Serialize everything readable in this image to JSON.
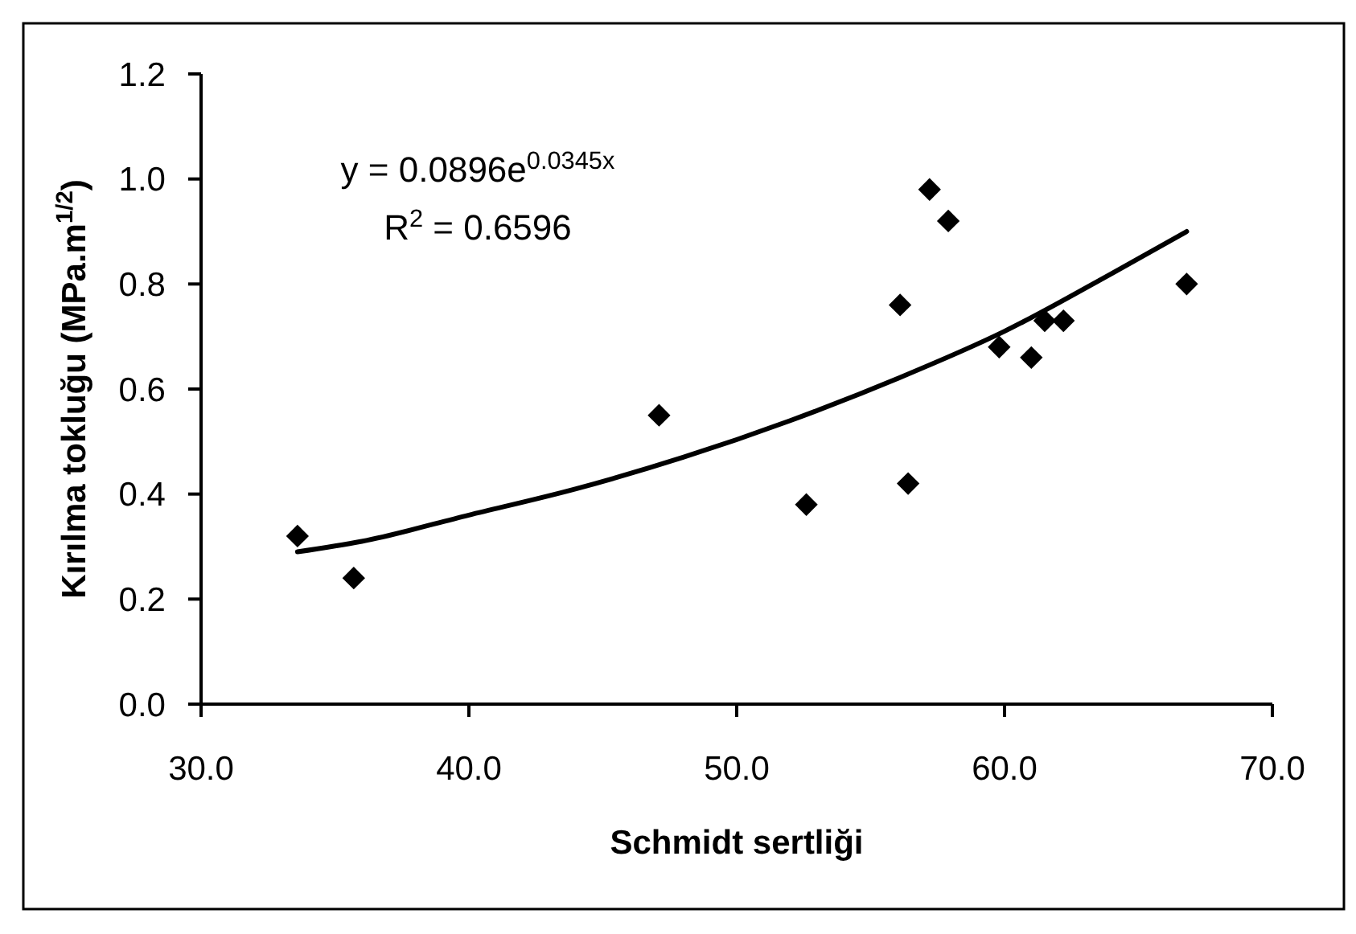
{
  "chart_data": {
    "type": "scatter",
    "xlabel": "Schmidt sertliği",
    "ylabel": "Kırılma tokluğu (MPa.m$^{1/2}$)",
    "annotations": [
      "y = 0.0896e$^{0.0345x}$",
      "R$^{2}$ = 0.6596"
    ],
    "xlim": [
      30,
      70
    ],
    "xticks": [
      {
        "value": 30,
        "label": "30.0"
      },
      {
        "value": 40,
        "label": "40.0"
      },
      {
        "value": 50,
        "label": "50.0"
      },
      {
        "value": 60,
        "label": "60.0"
      },
      {
        "value": 70,
        "label": "70.0"
      }
    ],
    "ylim": [
      0,
      1.2
    ],
    "yticks": [
      {
        "value": 0,
        "label": "0.0"
      },
      0.2,
      0.4,
      0.6,
      0.8,
      {
        "value": 1,
        "label": "1.0"
      },
      1.2
    ],
    "series": [
      {
        "color": "#000000",
        "marker": "diamond",
        "x": [
          33.6,
          35.7,
          47.1,
          52.6,
          56.4,
          56.1,
          57.2,
          57.9,
          59.8,
          61.0,
          61.5,
          62.2,
          66.8
        ],
        "values": [
          0.32,
          0.24,
          0.55,
          0.38,
          0.42,
          0.76,
          0.98,
          0.92,
          0.68,
          0.66,
          0.73,
          0.73,
          0.8
        ]
      },
      {
        "type": "line",
        "color": "#000000",
        "marker": "none",
        "x": [
          33.6,
          36,
          40,
          44,
          48,
          52,
          56,
          60,
          64,
          66.8
        ],
        "values": [
          0.29,
          0.31,
          0.36,
          0.41,
          0.47,
          0.54,
          0.62,
          0.71,
          0.82,
          0.9
        ]
      }
    ]
  }
}
